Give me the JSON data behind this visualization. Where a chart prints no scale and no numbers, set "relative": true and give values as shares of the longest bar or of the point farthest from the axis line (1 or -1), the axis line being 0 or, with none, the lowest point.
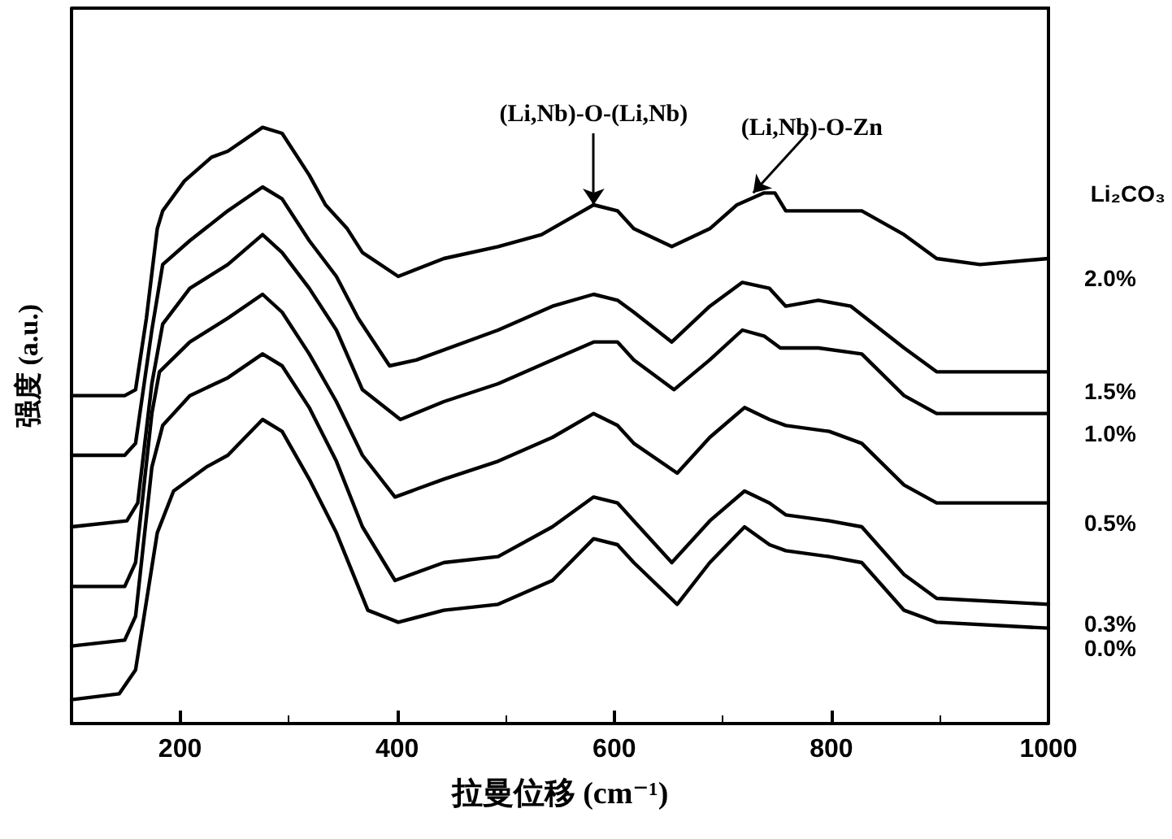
{
  "chart_data": {
    "type": "line",
    "relative": true,
    "xlabel": "拉曼位移 (cm⁻¹)",
    "ylabel": "强度 (a.u.)",
    "legend_title": "Li₂CO₃",
    "xlim": [
      100,
      1000
    ],
    "xticks": [
      200,
      400,
      600,
      800,
      1000
    ],
    "grid": false,
    "legend": false,
    "marker": "none",
    "line_style": "solid",
    "annotations": [
      {
        "text": "(Li,Nb)-O-(Li,Nb)",
        "x": 581,
        "y": 0.87
      },
      {
        "text": "(Li,Nb)-O-Zn",
        "x": 728,
        "y": 0.89
      }
    ],
    "series": [
      {
        "name": "2.0%",
        "color": "#000000",
        "x": [
          100,
          149,
          159,
          169,
          179,
          184,
          204,
          229,
          244,
          276,
          294,
          319,
          334,
          354,
          368,
          401,
          443,
          493,
          533,
          581,
          603,
          618,
          653,
          688,
          713,
          738,
          748,
          758,
          788,
          828,
          867,
          897,
          937,
          1000
        ],
        "values": [
          0.55,
          0.55,
          0.56,
          0.68,
          0.83,
          0.86,
          0.91,
          0.95,
          0.96,
          1.0,
          0.99,
          0.92,
          0.87,
          0.83,
          0.79,
          0.75,
          0.78,
          0.8,
          0.82,
          0.87,
          0.86,
          0.83,
          0.8,
          0.83,
          0.87,
          0.89,
          0.89,
          0.86,
          0.86,
          0.86,
          0.82,
          0.78,
          0.77,
          0.78
        ]
      },
      {
        "name": "1.5%",
        "color": "#000000",
        "x": [
          100,
          149,
          159,
          174,
          184,
          209,
          244,
          276,
          294,
          319,
          344,
          364,
          393,
          418,
          493,
          543,
          581,
          603,
          618,
          653,
          688,
          718,
          743,
          758,
          788,
          818,
          867,
          897,
          1000
        ],
        "values": [
          0.45,
          0.45,
          0.47,
          0.66,
          0.77,
          0.81,
          0.86,
          0.9,
          0.88,
          0.81,
          0.75,
          0.68,
          0.6,
          0.61,
          0.66,
          0.7,
          0.72,
          0.71,
          0.69,
          0.64,
          0.7,
          0.74,
          0.73,
          0.7,
          0.71,
          0.7,
          0.63,
          0.59,
          0.59
        ]
      },
      {
        "name": "1.0%",
        "color": "#000000",
        "x": [
          100,
          151,
          161,
          174,
          184,
          209,
          244,
          276,
          294,
          319,
          344,
          368,
          403,
          443,
          493,
          543,
          581,
          603,
          618,
          655,
          688,
          718,
          738,
          753,
          788,
          828,
          867,
          897,
          1000
        ],
        "values": [
          0.33,
          0.34,
          0.37,
          0.57,
          0.67,
          0.73,
          0.77,
          0.82,
          0.79,
          0.73,
          0.66,
          0.56,
          0.51,
          0.54,
          0.57,
          0.61,
          0.64,
          0.64,
          0.61,
          0.56,
          0.61,
          0.66,
          0.65,
          0.63,
          0.63,
          0.62,
          0.55,
          0.52,
          0.52
        ]
      },
      {
        "name": "0.5%",
        "color": "#000000",
        "x": [
          100,
          149,
          159,
          174,
          181,
          209,
          244,
          276,
          294,
          319,
          344,
          368,
          398,
          443,
          493,
          543,
          581,
          603,
          618,
          658,
          688,
          720,
          743,
          758,
          798,
          828,
          867,
          897,
          1000
        ],
        "values": [
          0.23,
          0.23,
          0.27,
          0.52,
          0.59,
          0.64,
          0.68,
          0.72,
          0.69,
          0.62,
          0.54,
          0.45,
          0.38,
          0.41,
          0.44,
          0.48,
          0.52,
          0.5,
          0.47,
          0.42,
          0.48,
          0.53,
          0.51,
          0.5,
          0.49,
          0.47,
          0.4,
          0.37,
          0.37
        ]
      },
      {
        "name": "0.3%",
        "color": "#000000",
        "x": [
          100,
          149,
          159,
          174,
          184,
          209,
          244,
          276,
          294,
          319,
          344,
          368,
          398,
          443,
          493,
          543,
          581,
          603,
          618,
          653,
          688,
          720,
          743,
          758,
          798,
          828,
          867,
          897,
          1000
        ],
        "values": [
          0.13,
          0.14,
          0.18,
          0.43,
          0.5,
          0.55,
          0.58,
          0.62,
          0.6,
          0.53,
          0.44,
          0.33,
          0.24,
          0.27,
          0.28,
          0.33,
          0.38,
          0.37,
          0.34,
          0.27,
          0.34,
          0.39,
          0.37,
          0.35,
          0.34,
          0.33,
          0.25,
          0.21,
          0.2
        ]
      },
      {
        "name": "0.0%",
        "color": "#000000",
        "x": [
          100,
          144,
          159,
          179,
          194,
          224,
          244,
          276,
          294,
          319,
          344,
          373,
          401,
          443,
          493,
          543,
          581,
          603,
          618,
          658,
          688,
          720,
          743,
          758,
          798,
          828,
          867,
          897,
          1000
        ],
        "values": [
          0.04,
          0.05,
          0.09,
          0.32,
          0.39,
          0.43,
          0.45,
          0.51,
          0.49,
          0.41,
          0.32,
          0.19,
          0.17,
          0.19,
          0.2,
          0.24,
          0.31,
          0.3,
          0.27,
          0.2,
          0.27,
          0.33,
          0.3,
          0.29,
          0.28,
          0.27,
          0.19,
          0.17,
          0.16
        ]
      }
    ]
  }
}
